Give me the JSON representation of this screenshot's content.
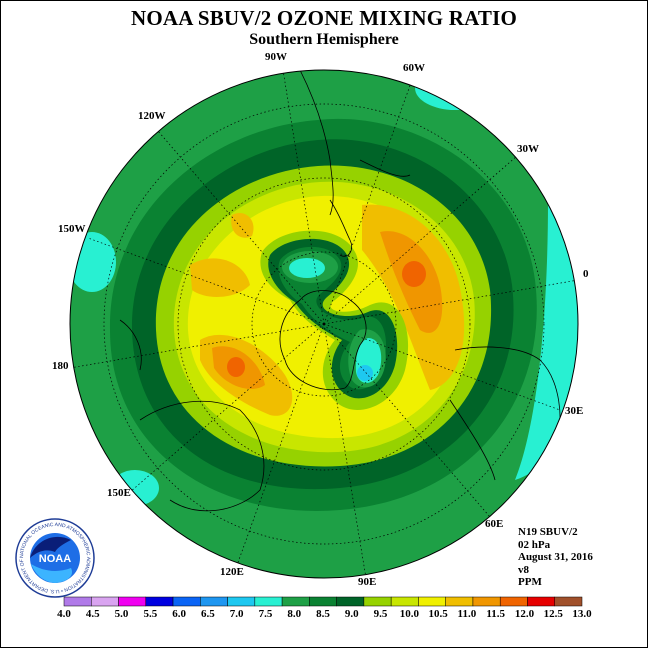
{
  "title": "NOAA SBUV/2 OZONE MIXING RATIO",
  "subtitle": "Southern Hemisphere",
  "longitude_labels": [
    "90W",
    "60W",
    "30W",
    "0",
    "30E",
    "60E",
    "90E",
    "120E",
    "150E",
    "180",
    "150W",
    "120W"
  ],
  "info": {
    "satellite": "N19 SBUV/2",
    "pressure": "02 hPa",
    "date": "August 31, 2016",
    "version": "v8",
    "units": "PPM"
  },
  "logo": {
    "text": "NOAA",
    "ring_text": "NATIONAL OCEANIC AND ATMOSPHERIC ADMINISTRATION • U.S. DEPARTMENT OF COMMERCE"
  },
  "colorbar": {
    "ticks": [
      "4.0",
      "4.5",
      "5.0",
      "5.5",
      "6.0",
      "6.5",
      "7.0",
      "7.5",
      "8.0",
      "8.5",
      "9.0",
      "9.5",
      "10.0",
      "10.5",
      "11.0",
      "11.5",
      "12.0",
      "12.5",
      "13.0"
    ],
    "colors": [
      "#b07ae8",
      "#d9a4f0",
      "#f000f0",
      "#0000e0",
      "#0a64f5",
      "#1e96f0",
      "#1ec8f0",
      "#28f0d2",
      "#1ea046",
      "#0a8232",
      "#006428",
      "#96d200",
      "#c8e600",
      "#f0f000",
      "#f0be00",
      "#f09600",
      "#f06400",
      "#e60000",
      "#a0502a"
    ]
  },
  "contour_colors": {
    "c7_5": "#28f0d2",
    "c8_0": "#1ea046",
    "c8_5": "#0a8232",
    "c9_0": "#006428",
    "c9_5": "#96d200",
    "c10_0": "#c8e600",
    "c10_5": "#f0f000",
    "c11_0": "#f0be00",
    "c11_5": "#f09600",
    "c12_0": "#f06400"
  }
}
